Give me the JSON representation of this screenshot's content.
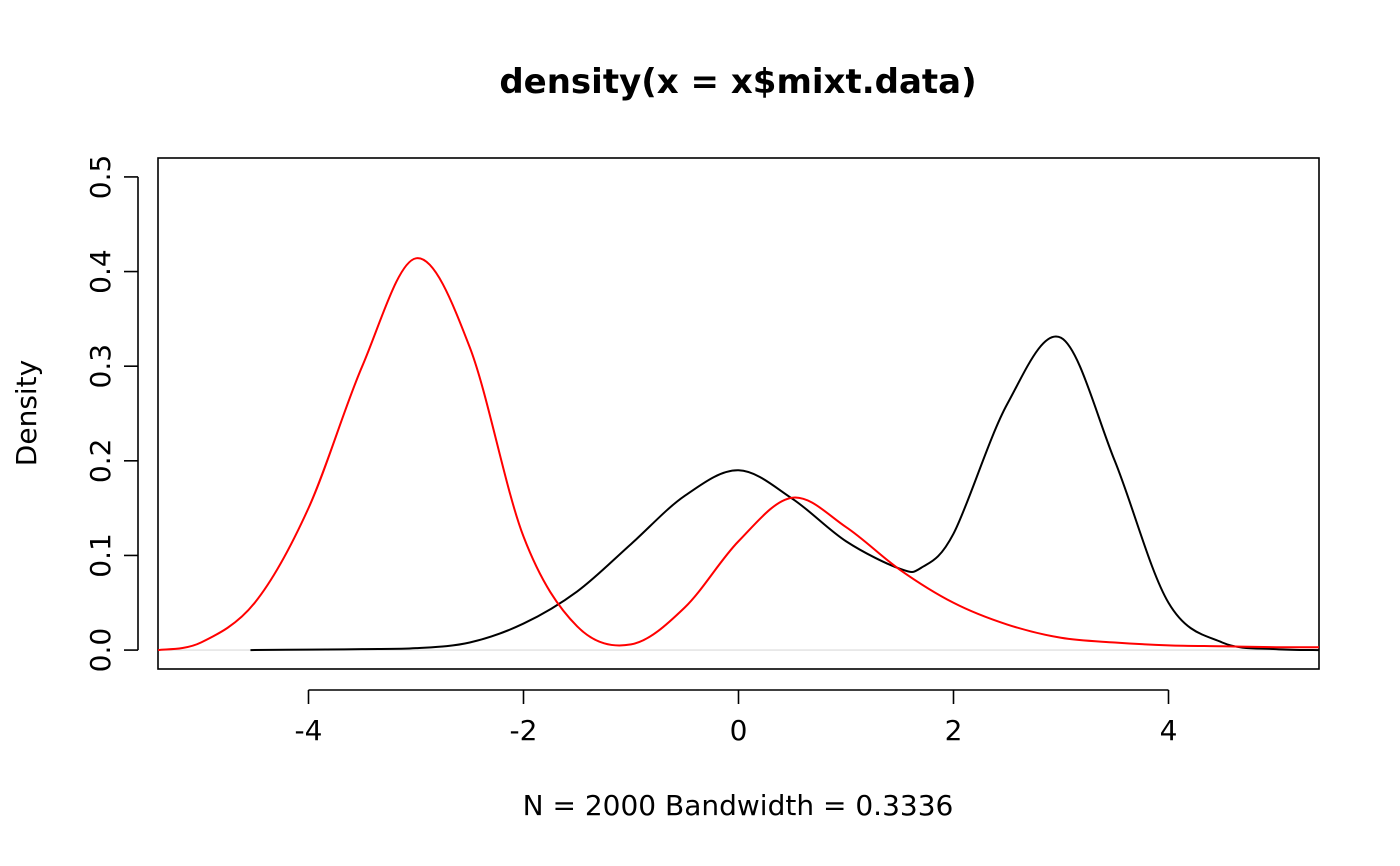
{
  "chart_data": {
    "type": "line",
    "title": "density(x = x$mixt.data)",
    "xlabel": "N = 2000   Bandwidth = 0.3336",
    "ylabel": "Density",
    "xlim": [
      -5.4,
      5.4
    ],
    "ylim": [
      -0.02,
      0.52
    ],
    "x_ticks": [
      -4,
      -2,
      0,
      2,
      4
    ],
    "x_tick_labels": [
      "-4",
      "-2",
      "0",
      "2",
      "4"
    ],
    "y_ticks": [
      0.0,
      0.1,
      0.2,
      0.3,
      0.4,
      0.5
    ],
    "y_tick_labels": [
      "0.0",
      "0.1",
      "0.2",
      "0.3",
      "0.4",
      "0.5"
    ],
    "grid": false,
    "legend": "none",
    "baseline": {
      "y": 0,
      "color": "#d9d9d9"
    },
    "series": [
      {
        "color": "#000000",
        "x": [
          -4.54,
          -4.0,
          -3.5,
          -3.0,
          -2.5,
          -2.0,
          -1.5,
          -1.0,
          -0.5,
          0.0,
          0.5,
          1.0,
          1.5,
          1.7,
          2.0,
          2.5,
          3.0,
          3.5,
          4.0,
          4.5,
          5.0,
          5.4
        ],
        "y": [
          0.0,
          0.0005,
          0.001,
          0.002,
          0.008,
          0.028,
          0.062,
          0.112,
          0.163,
          0.19,
          0.16,
          0.115,
          0.086,
          0.087,
          0.123,
          0.26,
          0.33,
          0.2,
          0.05,
          0.008,
          0.001,
          0.0
        ]
      },
      {
        "color": "#ff0000",
        "x": [
          -5.4,
          -5.0,
          -4.5,
          -4.0,
          -3.5,
          -3.0,
          -2.5,
          -2.0,
          -1.5,
          -1.0,
          -0.5,
          0.0,
          0.5,
          1.0,
          1.5,
          2.0,
          2.5,
          3.0,
          3.5,
          4.0,
          4.5,
          5.0,
          5.4
        ],
        "y": [
          0.0,
          0.008,
          0.05,
          0.15,
          0.3,
          0.414,
          0.32,
          0.12,
          0.025,
          0.006,
          0.045,
          0.115,
          0.161,
          0.13,
          0.085,
          0.05,
          0.027,
          0.013,
          0.008,
          0.005,
          0.004,
          0.003,
          0.003
        ]
      }
    ]
  }
}
